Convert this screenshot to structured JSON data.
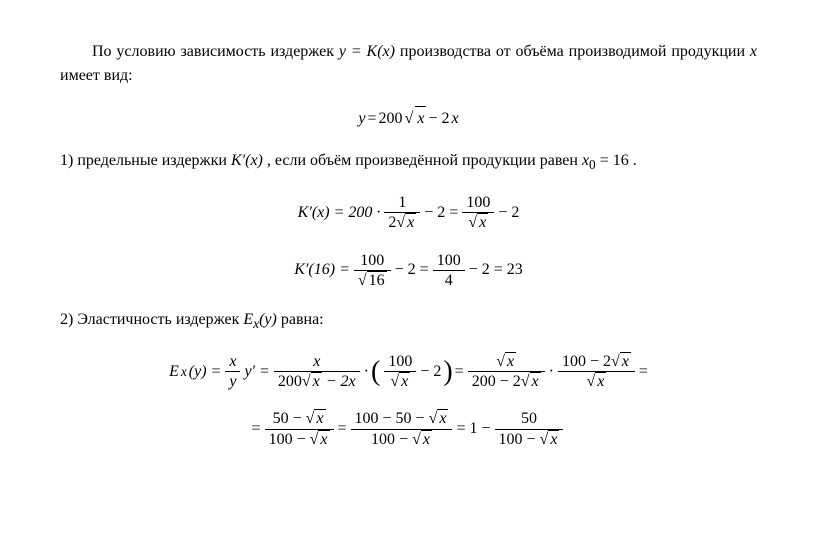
{
  "para1_part1": "По условию зависимость издержек ",
  "para1_math1": "y = K(x)",
  "para1_part2": " производства от объёма производимой продукции ",
  "para1_math2": "x",
  "para1_part3": " имеет вид:",
  "eq1": {
    "lhs": "y",
    "eq": " = ",
    "coef": "200",
    "sqrt_arg": "x",
    "minus": " − 2",
    "x": "x"
  },
  "item1_part1": "1) предельные издержки ",
  "item1_math1": "K′(x)",
  "item1_part2": ", если объём произведённой продукции равен ",
  "item1_math2_lhs": "x",
  "item1_math2_sub": "0",
  "item1_math2_rhs": " = 16",
  "item1_part3": ".",
  "eq2": {
    "lhs": "K′(x) = 200 · ",
    "f1_num": "1",
    "f1_den_coef": "2",
    "f1_den_sqrt": "x",
    "mid": " − 2 = ",
    "f2_num": "100",
    "f2_den_sqrt": "x",
    "tail": " − 2"
  },
  "eq3": {
    "lhs": "K′(16) = ",
    "f1_num": "100",
    "f1_den_sqrt": "16",
    "mid": " − 2 = ",
    "f2_num": "100",
    "f2_den": "4",
    "tail": " − 2 = 23"
  },
  "item2_part1": "2) Эластичность издержек ",
  "item2_math_E": "E",
  "item2_math_sub": "x",
  "item2_math_arg": "(y)",
  "item2_part2": " равна:",
  "eq4": {
    "E": "E",
    "E_sub": "x",
    "E_arg": "(y) = ",
    "f1_num": "x",
    "f1_den": "y",
    "yprime": "y′ = ",
    "f2_num": "x",
    "f2_den_coef": "200",
    "f2_den_sqrt": "x",
    "f2_den_tail": " − 2x",
    "dot": " · ",
    "paren_f_num": "100",
    "paren_f_den_sqrt": "x",
    "paren_tail": " − 2",
    "eq2": " = ",
    "f3_num_sqrt": "x",
    "f3_den_coef": "200 − 2",
    "f3_den_sqrt": "x",
    "dot2": " · ",
    "f4_num_coef": "100 − 2",
    "f4_num_sqrt": "x",
    "f4_den_sqrt": "x",
    "trail_eq": " ="
  },
  "eq5": {
    "lead": "= ",
    "f1_num_coef": "50 − ",
    "f1_num_sqrt": "x",
    "f1_den_coef": "100 − ",
    "f1_den_sqrt": "x",
    "mid": " = ",
    "f2_num_coef": "100 − 50 − ",
    "f2_num_sqrt": "x",
    "f2_den_coef": "100 − ",
    "f2_den_sqrt": "x",
    "mid2": " = 1 − ",
    "f3_num": "50",
    "f3_den_coef": "100 − ",
    "f3_den_sqrt": "x"
  },
  "colors": {
    "text": "#000000",
    "background": "#ffffff"
  },
  "fonts": {
    "body_family": "Times New Roman",
    "body_size_pt": 12
  }
}
